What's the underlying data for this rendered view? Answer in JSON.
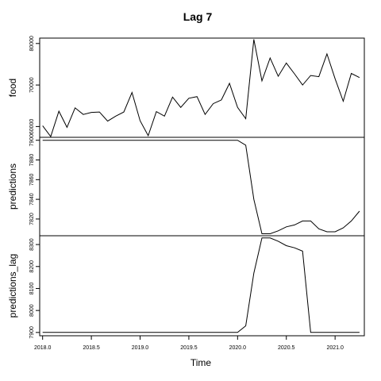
{
  "chart_data": {
    "type": "line",
    "title": "Lag  7",
    "xlabel": "Time",
    "x": [
      2018.0,
      2018.0833,
      2018.1667,
      2018.25,
      2018.3333,
      2018.4167,
      2018.5,
      2018.5833,
      2018.6667,
      2018.75,
      2018.8333,
      2018.9167,
      2019.0,
      2019.0833,
      2019.1667,
      2019.25,
      2019.3333,
      2019.4167,
      2019.5,
      2019.5833,
      2019.6667,
      2019.75,
      2019.8333,
      2019.9167,
      2020.0,
      2020.0833,
      2020.1667,
      2020.25,
      2020.3333,
      2020.4167,
      2020.5,
      2020.5833,
      2020.6667,
      2020.75,
      2020.8333,
      2020.9167,
      2021.0,
      2021.0833,
      2021.1667,
      2021.25
    ],
    "x_ticks": [
      "2018.0",
      "2018.5",
      "2019.0",
      "2019.5",
      "2020.0",
      "2020.5",
      "2021.0"
    ],
    "x_tick_values": [
      2018.0,
      2018.5,
      2019.0,
      2019.5,
      2020.0,
      2020.5,
      2021.0
    ],
    "xlim": [
      2017.97,
      2021.3
    ],
    "series": [
      {
        "name": "food",
        "ylim": [
          57400,
          81300
        ],
        "y_ticks": [
          "60000",
          "70000",
          "80000"
        ],
        "y_tick_values": [
          60000,
          70000,
          80000
        ],
        "values": [
          60200,
          57600,
          63700,
          59800,
          64500,
          62900,
          63400,
          63500,
          61300,
          62500,
          63500,
          68200,
          61400,
          57800,
          63600,
          62500,
          67100,
          64600,
          66800,
          67200,
          62900,
          65500,
          66400,
          70400,
          64600,
          61900,
          81000,
          71000,
          76500,
          72100,
          75300,
          72700,
          70000,
          72300,
          72000,
          77500,
          71500,
          66100,
          72800,
          71800
        ]
      },
      {
        "name": "predictions",
        "ylim": [
          7803,
          7903
        ],
        "y_ticks": [
          "7820",
          "7840",
          "7860",
          "7880",
          "7900"
        ],
        "y_tick_values": [
          7820,
          7840,
          7860,
          7880,
          7900
        ],
        "values": [
          7900,
          7900,
          7900,
          7900,
          7900,
          7900,
          7900,
          7900,
          7900,
          7900,
          7900,
          7900,
          7900,
          7900,
          7900,
          7900,
          7900,
          7900,
          7900,
          7900,
          7900,
          7900,
          7900,
          7900,
          7900,
          7895,
          7840,
          7805,
          7805,
          7808,
          7812,
          7814,
          7818,
          7818,
          7810,
          7807,
          7807,
          7811,
          7818,
          7828
        ]
      },
      {
        "name": "predictions_lag",
        "ylim": [
          7885,
          8340
        ],
        "y_ticks": [
          "7900",
          "8000",
          "8100",
          "8200",
          "8300"
        ],
        "y_tick_values": [
          7900,
          8000,
          8100,
          8200,
          8300
        ],
        "values": [
          7900,
          7900,
          7900,
          7900,
          7900,
          7900,
          7900,
          7900,
          7900,
          7900,
          7900,
          7900,
          7900,
          7900,
          7900,
          7900,
          7900,
          7900,
          7900,
          7900,
          7900,
          7900,
          7900,
          7900,
          7900,
          7930,
          8170,
          8330,
          8330,
          8315,
          8295,
          8285,
          8270,
          7900,
          7900,
          7900,
          7900,
          7900,
          7900,
          7900
        ]
      }
    ]
  }
}
